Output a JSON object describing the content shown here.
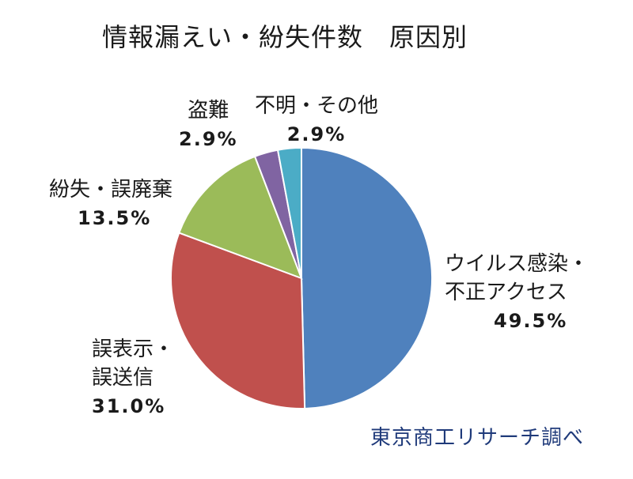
{
  "chart_data": {
    "type": "pie",
    "title": "情報漏えい・紛失件数　原因別",
    "slices": [
      {
        "label_lines": [
          "ウイルス感染・",
          "不正アクセス"
        ],
        "value": 49.5,
        "pct_label": "49.5%",
        "color": "#4f81bd"
      },
      {
        "label_lines": [
          "誤表示・",
          "誤送信"
        ],
        "value": 31.0,
        "pct_label": "31.0%",
        "color": "#c0504d"
      },
      {
        "label_lines": [
          "紛失・誤廃棄"
        ],
        "value": 13.5,
        "pct_label": "13.5%",
        "color": "#9bbb59"
      },
      {
        "label_lines": [
          "盗難"
        ],
        "value": 2.9,
        "pct_label": "2.9%",
        "color": "#8064a2"
      },
      {
        "label_lines": [
          "不明・その他"
        ],
        "value": 2.9,
        "pct_label": "2.9%",
        "color": "#4bacc6"
      }
    ],
    "start_angle_deg": 0,
    "direction": "clockwise"
  },
  "footer": {
    "source": "東京商工リサーチ調べ"
  }
}
